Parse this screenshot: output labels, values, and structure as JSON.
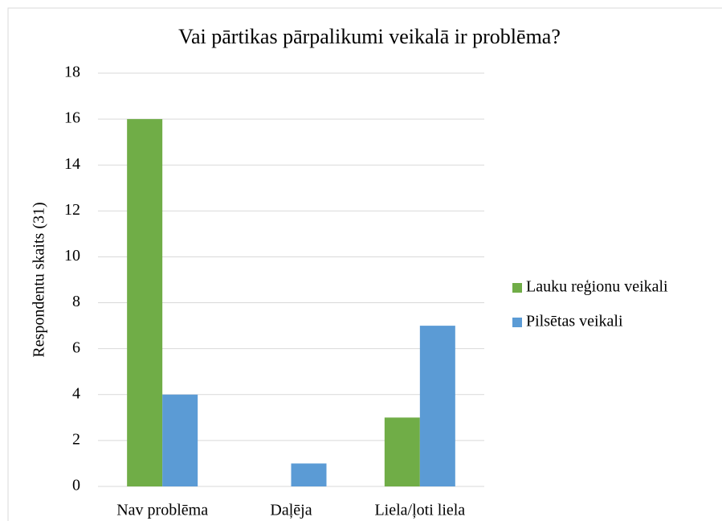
{
  "chart_data": {
    "type": "bar",
    "title": "Vai pārtikas pārpalikumi veikalā ir problēma?",
    "y_label": "Respondentu skaits (31)",
    "categories": [
      "Nav problēma",
      "Daļēja",
      "Liela/ļoti liela"
    ],
    "series": [
      {
        "name": "Lauku reģionu veikali",
        "color": "#70ad47",
        "values": [
          16,
          0,
          3
        ]
      },
      {
        "name": "Pilsētas veikali",
        "color": "#5b9bd5",
        "values": [
          4,
          1,
          7
        ]
      }
    ],
    "ylim": [
      0,
      18
    ],
    "yticks": [
      0,
      2,
      4,
      6,
      8,
      10,
      12,
      14,
      16,
      18
    ],
    "grid": true,
    "legend": "right"
  }
}
